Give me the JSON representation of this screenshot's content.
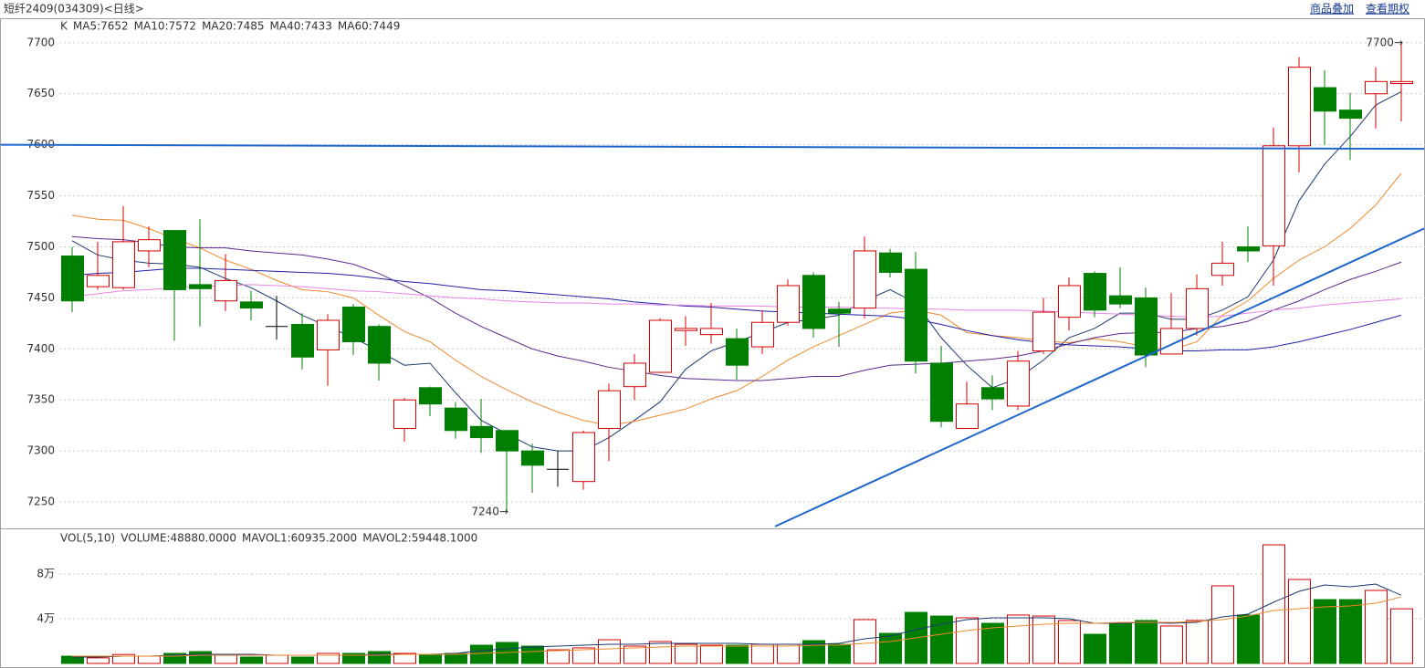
{
  "header": {
    "title": "短纤2409(034309)<日线>",
    "links": [
      "商品叠加",
      "查看期权"
    ]
  },
  "chart_data": [
    {
      "type": "candlestick",
      "label": "K",
      "up_color": "#d40000",
      "down_color": "#007f00",
      "flat_color": "#000000",
      "open": [
        7491,
        7461,
        7460,
        7496,
        7516,
        7463,
        7447,
        7446,
        7422,
        7424,
        7399,
        7441,
        7422,
        7322,
        7362,
        7342,
        7324,
        7320,
        7300,
        7282,
        7270,
        7322,
        7363,
        7377,
        7418,
        7414,
        7410,
        7402,
        7426,
        7472,
        7439,
        7440,
        7494,
        7478,
        7386,
        7322,
        7362,
        7344,
        7398,
        7431,
        7474,
        7452,
        7450,
        7395,
        7420,
        7472,
        7500,
        7501,
        7599,
        7656,
        7634,
        7650,
        7660
      ],
      "high": [
        7500,
        7505,
        7540,
        7520,
        7516,
        7527,
        7493,
        7457,
        7452,
        7435,
        7434,
        7444,
        7424,
        7352,
        7363,
        7348,
        7351,
        7320,
        7307,
        7300,
        7320,
        7366,
        7395,
        7430,
        7432,
        7445,
        7420,
        7438,
        7468,
        7475,
        7446,
        7510,
        7498,
        7495,
        7403,
        7368,
        7374,
        7398,
        7450,
        7470,
        7476,
        7480,
        7460,
        7455,
        7473,
        7505,
        7520,
        7617,
        7686,
        7673,
        7651,
        7676,
        7700
      ],
      "low": [
        7436,
        7458,
        7458,
        7480,
        7408,
        7422,
        7437,
        7428,
        7409,
        7380,
        7364,
        7394,
        7369,
        7309,
        7334,
        7312,
        7298,
        7240,
        7259,
        7265,
        7262,
        7290,
        7350,
        7377,
        7403,
        7405,
        7370,
        7395,
        7423,
        7411,
        7402,
        7430,
        7470,
        7376,
        7323,
        7322,
        7340,
        7340,
        7395,
        7418,
        7431,
        7440,
        7382,
        7395,
        7413,
        7462,
        7485,
        7462,
        7573,
        7600,
        7585,
        7616,
        7623
      ],
      "close": [
        7447,
        7472,
        7505,
        7507,
        7458,
        7459,
        7467,
        7440,
        7422,
        7392,
        7428,
        7407,
        7386,
        7350,
        7346,
        7320,
        7313,
        7300,
        7286,
        7282,
        7318,
        7359,
        7386,
        7428,
        7420,
        7420,
        7384,
        7426,
        7462,
        7420,
        7435,
        7496,
        7475,
        7388,
        7329,
        7346,
        7351,
        7388,
        7436,
        7462,
        7438,
        7444,
        7394,
        7420,
        7459,
        7484,
        7496,
        7599,
        7676,
        7633,
        7626,
        7662,
        7662
      ],
      "series": [
        {
          "name": "MA5:7652",
          "color": "#1c3a70",
          "values": [
            7506,
            7492,
            7487,
            7484,
            7483,
            7480,
            7469,
            7460,
            7447,
            7433,
            7422,
            7411,
            7398,
            7384,
            7386,
            7357,
            7330,
            7317,
            7304,
            7300,
            7300,
            7313,
            7330,
            7348,
            7380,
            7398,
            7407,
            7416,
            7426,
            7429,
            7433,
            7447,
            7458,
            7445,
            7411,
            7384,
            7362,
            7371,
            7389,
            7411,
            7420,
            7435,
            7435,
            7429,
            7429,
            7438,
            7451,
            7487,
            7545,
            7581,
            7608,
            7639,
            7652
          ]
        },
        {
          "name": "MA10:7572",
          "color": "#f08a2c",
          "values": [
            7531,
            7527,
            7526,
            7518,
            7508,
            7499,
            7487,
            7478,
            7467,
            7458,
            7456,
            7450,
            7433,
            7417,
            7407,
            7389,
            7373,
            7360,
            7348,
            7338,
            7330,
            7325,
            7329,
            7335,
            7341,
            7351,
            7359,
            7373,
            7389,
            7402,
            7413,
            7424,
            7435,
            7438,
            7433,
            7416,
            7413,
            7411,
            7408,
            7406,
            7410,
            7407,
            7402,
            7399,
            7407,
            7433,
            7447,
            7469,
            7487,
            7500,
            7518,
            7541,
            7572
          ]
        },
        {
          "name": "MA20:7485",
          "color": "#5a2a8c",
          "values": [
            7510,
            7508,
            7507,
            7504,
            7500,
            7499,
            7499,
            7496,
            7494,
            7492,
            7488,
            7483,
            7474,
            7462,
            7450,
            7435,
            7422,
            7411,
            7400,
            7393,
            7388,
            7382,
            7378,
            7374,
            7371,
            7370,
            7369,
            7369,
            7371,
            7373,
            7373,
            7379,
            7384,
            7385,
            7386,
            7388,
            7390,
            7393,
            7398,
            7405,
            7411,
            7415,
            7416,
            7416,
            7420,
            7422,
            7427,
            7438,
            7447,
            7458,
            7468,
            7476,
            7485
          ]
        },
        {
          "name": "MA40:7433",
          "color": "#2020a8",
          "values": [
            7472,
            7474,
            7475,
            7477,
            7479,
            7479,
            7478,
            7477,
            7476,
            7475,
            7474,
            7472,
            7469,
            7466,
            7464,
            7461,
            7458,
            7457,
            7455,
            7453,
            7451,
            7449,
            7446,
            7444,
            7442,
            7441,
            7439,
            7437,
            7436,
            7435,
            7434,
            7433,
            7432,
            7429,
            7424,
            7418,
            7413,
            7409,
            7406,
            7404,
            7403,
            7402,
            7400,
            7398,
            7398,
            7399,
            7399,
            7402,
            7407,
            7413,
            7419,
            7426,
            7433
          ]
        },
        {
          "name": "MA60:7449",
          "color": "#e685e6",
          "values": [
            7451,
            7454,
            7457,
            7458,
            7460,
            7461,
            7462,
            7463,
            7462,
            7461,
            7459,
            7457,
            7456,
            7454,
            7452,
            7450,
            7449,
            7447,
            7446,
            7445,
            7445,
            7444,
            7444,
            7443,
            7443,
            7442,
            7442,
            7442,
            7441,
            7441,
            7441,
            7440,
            7440,
            7439,
            7439,
            7438,
            7438,
            7438,
            7437,
            7436,
            7435,
            7434,
            7433,
            7432,
            7431,
            7432,
            7435,
            7438,
            7440,
            7443,
            7445,
            7447,
            7449
          ]
        }
      ],
      "drawn_lines": [
        {
          "color": "#1e66cc",
          "x": [
            -2.8,
            52.9
          ],
          "y": [
            7600,
            7596
          ]
        },
        {
          "color": "#1e66cc",
          "x": [
            27.5,
            52.9
          ],
          "y": [
            7226,
            7518
          ]
        }
      ],
      "low_label": "7240→",
      "high_label": "7700→",
      "ylim": [
        7225,
        7724
      ],
      "yticks": [
        7250,
        7300,
        7350,
        7400,
        7450,
        7500,
        7550,
        7600,
        7650,
        7700
      ],
      "grid": true
    },
    {
      "type": "bar",
      "label": "VOL(5,10)",
      "volume_label": "VOLUME:48880.0000",
      "values": [
        6500,
        5000,
        8000,
        6500,
        9000,
        10600,
        7300,
        5700,
        7300,
        5700,
        9000,
        9000,
        10600,
        9000,
        7300,
        9000,
        16300,
        18800,
        15500,
        12200,
        13900,
        21200,
        15500,
        19600,
        17100,
        16300,
        16300,
        17100,
        17100,
        20400,
        17100,
        39200,
        26900,
        45700,
        42400,
        40800,
        35900,
        43300,
        42400,
        38400,
        26100,
        35900,
        38400,
        33500,
        38400,
        69400,
        43300,
        106100,
        75100,
        57100,
        57100,
        65300,
        48880
      ],
      "series": [
        {
          "name": "MAVOL1:60935.2000",
          "color": "#1c3a70",
          "values": [
            5700,
            5700,
            6500,
            6500,
            7300,
            8200,
            8200,
            8200,
            7300,
            7300,
            7300,
            7300,
            8200,
            8200,
            8200,
            9000,
            11400,
            13100,
            14700,
            15500,
            16300,
            17100,
            17100,
            18000,
            18000,
            18000,
            18000,
            17100,
            17100,
            17100,
            18000,
            22000,
            24500,
            30200,
            35100,
            39200,
            40800,
            40800,
            40800,
            40000,
            35900,
            35900,
            36700,
            35900,
            36700,
            41600,
            44100,
            54700,
            64500,
            70200,
            68600,
            71000,
            60935.2
          ]
        },
        {
          "name": "MAVOL2:59448.1000",
          "color": "#f08a2c",
          "values": [
            6500,
            6500,
            6500,
            6500,
            6500,
            7300,
            7300,
            7300,
            7300,
            7300,
            7300,
            7300,
            7300,
            8200,
            8200,
            8200,
            9000,
            9800,
            10600,
            11400,
            12200,
            13100,
            13900,
            14700,
            15500,
            15500,
            15500,
            15500,
            15500,
            16300,
            16300,
            18000,
            19600,
            22900,
            26100,
            29400,
            31800,
            33500,
            35100,
            35900,
            35900,
            36700,
            36700,
            36700,
            37600,
            39200,
            42400,
            47300,
            49000,
            50600,
            51400,
            53900,
            59448.1
          ]
        }
      ],
      "ylim": [
        0,
        120000
      ],
      "yticks": [
        {
          "value": 40000,
          "label": "4万"
        },
        {
          "value": 80000,
          "label": "8万"
        }
      ],
      "grid": true
    }
  ]
}
